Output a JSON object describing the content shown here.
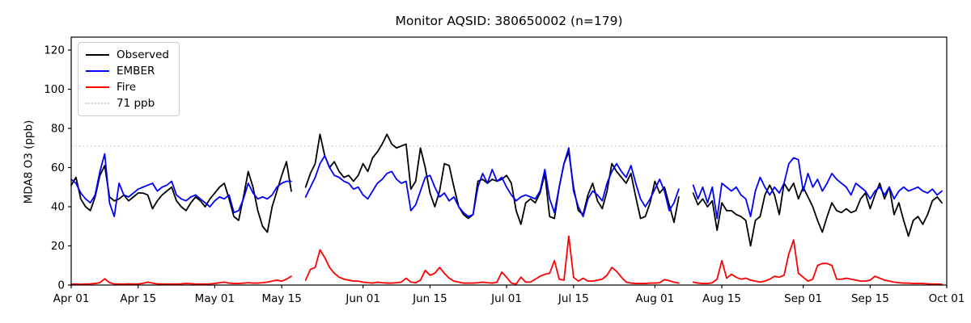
{
  "title": "Monitor AQSID: 380650002 (n=179)",
  "ylabel": "MDA8 O3 (ppb)",
  "colors": {
    "observed": "#000000",
    "ember": "#0000ff",
    "fire": "#ff0000",
    "threshold": "#d3d3d3",
    "frame": "#000000",
    "background": "#ffffff",
    "legend_border": "#cccccc"
  },
  "legend": {
    "position": "upper left",
    "items": [
      {
        "label": "Observed",
        "color": "#000000",
        "dash": "solid"
      },
      {
        "label": "EMBER",
        "color": "#0000ff",
        "dash": "solid"
      },
      {
        "label": "Fire",
        "color": "#ff0000",
        "dash": "solid"
      },
      {
        "label": "71 ppb",
        "color": "#d3d3d3",
        "dash": "dotted"
      }
    ]
  },
  "chart_data": {
    "type": "line",
    "title": "Monitor AQSID: 380650002 (n=179)",
    "xlabel": "",
    "ylabel": "MDA8 O3 (ppb)",
    "grid": false,
    "legend_position": "upper left",
    "ylim": [
      0,
      126.6
    ],
    "y_ticks": [
      0,
      20,
      40,
      60,
      80,
      100,
      120
    ],
    "x_days_total": 183,
    "x_start_date": "Apr 01",
    "x_end_date": "Oct 01",
    "x_ticks": [
      {
        "day": 0,
        "label": "Apr 01"
      },
      {
        "day": 14,
        "label": "Apr 15"
      },
      {
        "day": 30,
        "label": "May 01"
      },
      {
        "day": 44,
        "label": "May 15"
      },
      {
        "day": 61,
        "label": "Jun 01"
      },
      {
        "day": 75,
        "label": "Jun 15"
      },
      {
        "day": 91,
        "label": "Jul 01"
      },
      {
        "day": 105,
        "label": "Jul 15"
      },
      {
        "day": 122,
        "label": "Aug 01"
      },
      {
        "day": 136,
        "label": "Aug 15"
      },
      {
        "day": 153,
        "label": "Sep 01"
      },
      {
        "day": 167,
        "label": "Sep 15"
      },
      {
        "day": 183,
        "label": "Oct 01"
      }
    ],
    "threshold": {
      "value": 71,
      "label": "71 ppb",
      "color": "#d3d3d3",
      "style": "dotted"
    },
    "missing_days_note": "nulls = missing observations (May 18-19, Aug 07-08); n=179 of 183 days",
    "series": [
      {
        "name": "Observed",
        "color": "#000000",
        "values": [
          51,
          55,
          44,
          40,
          38,
          45,
          56,
          61,
          45,
          43,
          44,
          46,
          43,
          45,
          47,
          47,
          46,
          39,
          43,
          46,
          48,
          50,
          43,
          40,
          38,
          42,
          45,
          43,
          40,
          44,
          47,
          50,
          52,
          44,
          35,
          33,
          45,
          58,
          50,
          38,
          30,
          27,
          40,
          48,
          56,
          63,
          48,
          null,
          null,
          50,
          57,
          62,
          77,
          66,
          60,
          63,
          58,
          55,
          56,
          53,
          56,
          62,
          58,
          65,
          68,
          72,
          77,
          72,
          70,
          71,
          72,
          49,
          53,
          70,
          60,
          47,
          40,
          48,
          62,
          61,
          50,
          40,
          36,
          34,
          36,
          53,
          54,
          52,
          54,
          53,
          54,
          56,
          52,
          38,
          31,
          42,
          44,
          42,
          47,
          57,
          35,
          34,
          50,
          62,
          68,
          50,
          38,
          36,
          46,
          52,
          43,
          39,
          48,
          62,
          58,
          55,
          52,
          57,
          45,
          34,
          35,
          42,
          53,
          47,
          50,
          41,
          32,
          45,
          null,
          null,
          47,
          41,
          44,
          40,
          43,
          28,
          42,
          38,
          38,
          36,
          35,
          33,
          20,
          33,
          35,
          46,
          51,
          46,
          36,
          52,
          48,
          52,
          44,
          50,
          45,
          40,
          33,
          27,
          35,
          42,
          38,
          37,
          39,
          37,
          38,
          44,
          47,
          39,
          46,
          52,
          44,
          50,
          36,
          42,
          33,
          25,
          33,
          35,
          31,
          36,
          43,
          45,
          42
        ]
      },
      {
        "name": "EMBER",
        "color": "#0000ff",
        "values": [
          54,
          52,
          47,
          44,
          42,
          46,
          58,
          67,
          42,
          35,
          52,
          46,
          45,
          47,
          49,
          50,
          51,
          52,
          48,
          50,
          51,
          53,
          46,
          44,
          43,
          45,
          46,
          44,
          42,
          40,
          43,
          45,
          44,
          46,
          37,
          38,
          44,
          52,
          47,
          44,
          45,
          44,
          46,
          50,
          52,
          53,
          53,
          null,
          null,
          45,
          50,
          55,
          62,
          66,
          60,
          56,
          55,
          53,
          52,
          49,
          50,
          46,
          44,
          48,
          52,
          54,
          57,
          58,
          54,
          52,
          53,
          38,
          41,
          48,
          55,
          56,
          50,
          45,
          47,
          43,
          45,
          40,
          37,
          35,
          36,
          50,
          57,
          52,
          59,
          53,
          55,
          50,
          46,
          43,
          45,
          46,
          45,
          44,
          48,
          59,
          44,
          37,
          50,
          62,
          70,
          48,
          40,
          35,
          44,
          48,
          46,
          43,
          52,
          58,
          62,
          58,
          55,
          61,
          52,
          44,
          40,
          44,
          49,
          54,
          48,
          38,
          42,
          49,
          null,
          null,
          51,
          44,
          50,
          42,
          50,
          34,
          52,
          50,
          48,
          50,
          46,
          44,
          35,
          48,
          55,
          50,
          46,
          50,
          47,
          52,
          62,
          65,
          64,
          48,
          57,
          50,
          54,
          48,
          52,
          57,
          54,
          52,
          50,
          46,
          52,
          50,
          48,
          44,
          48,
          50,
          46,
          50,
          44,
          48,
          50,
          48,
          49,
          50,
          48,
          47,
          49,
          46,
          48
        ]
      },
      {
        "name": "Fire",
        "color": "#ff0000",
        "values": [
          0.5,
          0.5,
          0.4,
          0.5,
          0.6,
          0.8,
          1.2,
          3.2,
          1.2,
          0.6,
          0.5,
          0.5,
          0.6,
          0.5,
          0.5,
          0.9,
          1.5,
          1.0,
          0.6,
          0.5,
          0.5,
          0.5,
          0.5,
          0.6,
          0.8,
          0.7,
          0.5,
          0.5,
          0.5,
          0.6,
          0.8,
          1.2,
          1.5,
          1.0,
          0.8,
          0.8,
          1.0,
          1.2,
          1.0,
          1.0,
          1.2,
          1.5,
          2.0,
          2.5,
          2.0,
          3.0,
          4.5,
          null,
          null,
          2.5,
          8.0,
          9.0,
          18.0,
          14.0,
          9.0,
          6.0,
          4.0,
          3.0,
          2.5,
          2.0,
          2.0,
          1.5,
          1.2,
          1.0,
          1.5,
          1.2,
          1.0,
          1.0,
          1.2,
          1.5,
          3.5,
          1.5,
          1.2,
          2.5,
          7.5,
          5.0,
          6.0,
          9.0,
          6.0,
          3.5,
          2.0,
          1.5,
          1.0,
          1.0,
          1.0,
          1.2,
          1.5,
          1.2,
          1.0,
          1.5,
          6.6,
          4.0,
          1.0,
          0.5,
          4.0,
          1.5,
          1.5,
          3.0,
          4.5,
          5.5,
          6.0,
          12.5,
          3.0,
          2.5,
          25.0,
          4.0,
          2.0,
          3.5,
          2.0,
          2.0,
          2.5,
          3.0,
          5.0,
          9.0,
          7.0,
          4.0,
          1.5,
          1.0,
          0.8,
          0.8,
          0.8,
          1.0,
          1.0,
          1.2,
          2.8,
          2.2,
          1.5,
          1.0,
          null,
          null,
          1.5,
          1.0,
          0.8,
          0.8,
          1.2,
          3.0,
          12.5,
          3.5,
          5.5,
          4.0,
          3.0,
          3.5,
          2.5,
          2.0,
          1.5,
          2.0,
          3.0,
          4.5,
          4.0,
          5.0,
          16.0,
          23.0,
          6.0,
          4.0,
          2.0,
          3.0,
          10.0,
          11.0,
          11.0,
          10.0,
          3.0,
          3.0,
          3.5,
          3.0,
          2.5,
          2.0,
          2.0,
          2.5,
          4.5,
          3.5,
          2.5,
          2.0,
          1.5,
          1.2,
          1.0,
          1.0,
          0.8,
          0.8,
          0.8,
          0.6,
          0.5,
          0.5,
          0.4
        ]
      }
    ]
  }
}
